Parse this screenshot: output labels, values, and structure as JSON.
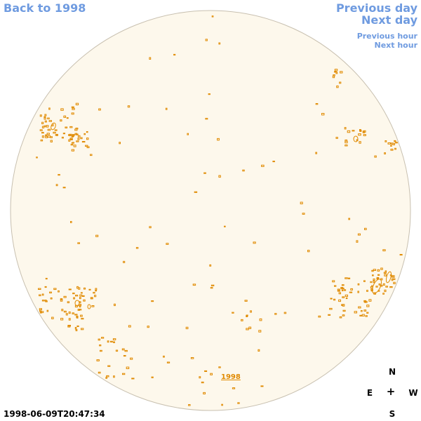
{
  "nav": {
    "back_label": "Back to 1998",
    "previous_day_label": "Previous day",
    "next_day_label": "Next day",
    "previous_hour_label": "Previous hour",
    "next_hour_label": "Next hour"
  },
  "compass": {
    "north": "N",
    "south": "S",
    "east": "E",
    "west": "W",
    "center": "+"
  },
  "timestamp": "1998-06-09T20:47:34",
  "year_label": "1998",
  "colors": {
    "disk_fill": "#fdf8ec",
    "disk_stroke": "#c8c0b0",
    "contour": "#e08a00",
    "link": "#6f9be0"
  }
}
